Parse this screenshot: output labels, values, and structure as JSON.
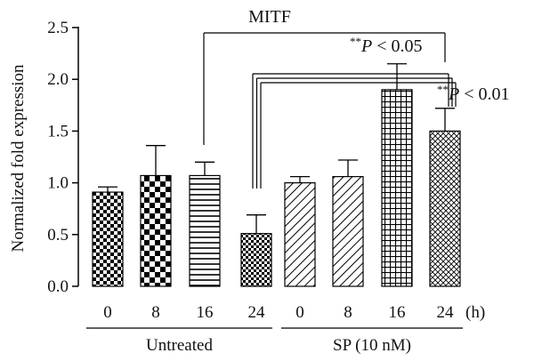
{
  "chart_data": {
    "type": "bar",
    "title": "",
    "xlabel": "",
    "ylabel": "Normalized fold expression",
    "ylim": [
      0,
      2.5
    ],
    "yticks": [
      "0.0",
      "0.5",
      "1.0",
      "1.5",
      "2.0",
      "2.5"
    ],
    "x_unit": "(h)",
    "categories": [
      "0",
      "8",
      "16",
      "24",
      "0",
      "8",
      "16",
      "24"
    ],
    "values": [
      0.91,
      1.07,
      1.07,
      0.51,
      1.0,
      1.06,
      1.9,
      1.5
    ],
    "errors": [
      0.05,
      0.29,
      0.13,
      0.18,
      0.06,
      0.16,
      0.25,
      0.22
    ],
    "groups": [
      {
        "label": "Untreated",
        "indices": [
          0,
          1,
          2,
          3
        ]
      },
      {
        "label": "SP (10 nM)",
        "indices": [
          4,
          5,
          6,
          7
        ]
      }
    ],
    "patterns": [
      "small-checker",
      "large-checker",
      "horizontal-lines",
      "dense-checker",
      "diagonal-lines",
      "diagonal-lines",
      "grid",
      "diagonal-cross"
    ],
    "annotations": {
      "gene": "MITF",
      "p1_stars": "**",
      "p1_p": "P",
      "p1_rest": " < 0.05",
      "p2_stars": "**",
      "p2_p": "P",
      "p2_rest": " < 0.01"
    },
    "grid": false,
    "legend": "none"
  }
}
